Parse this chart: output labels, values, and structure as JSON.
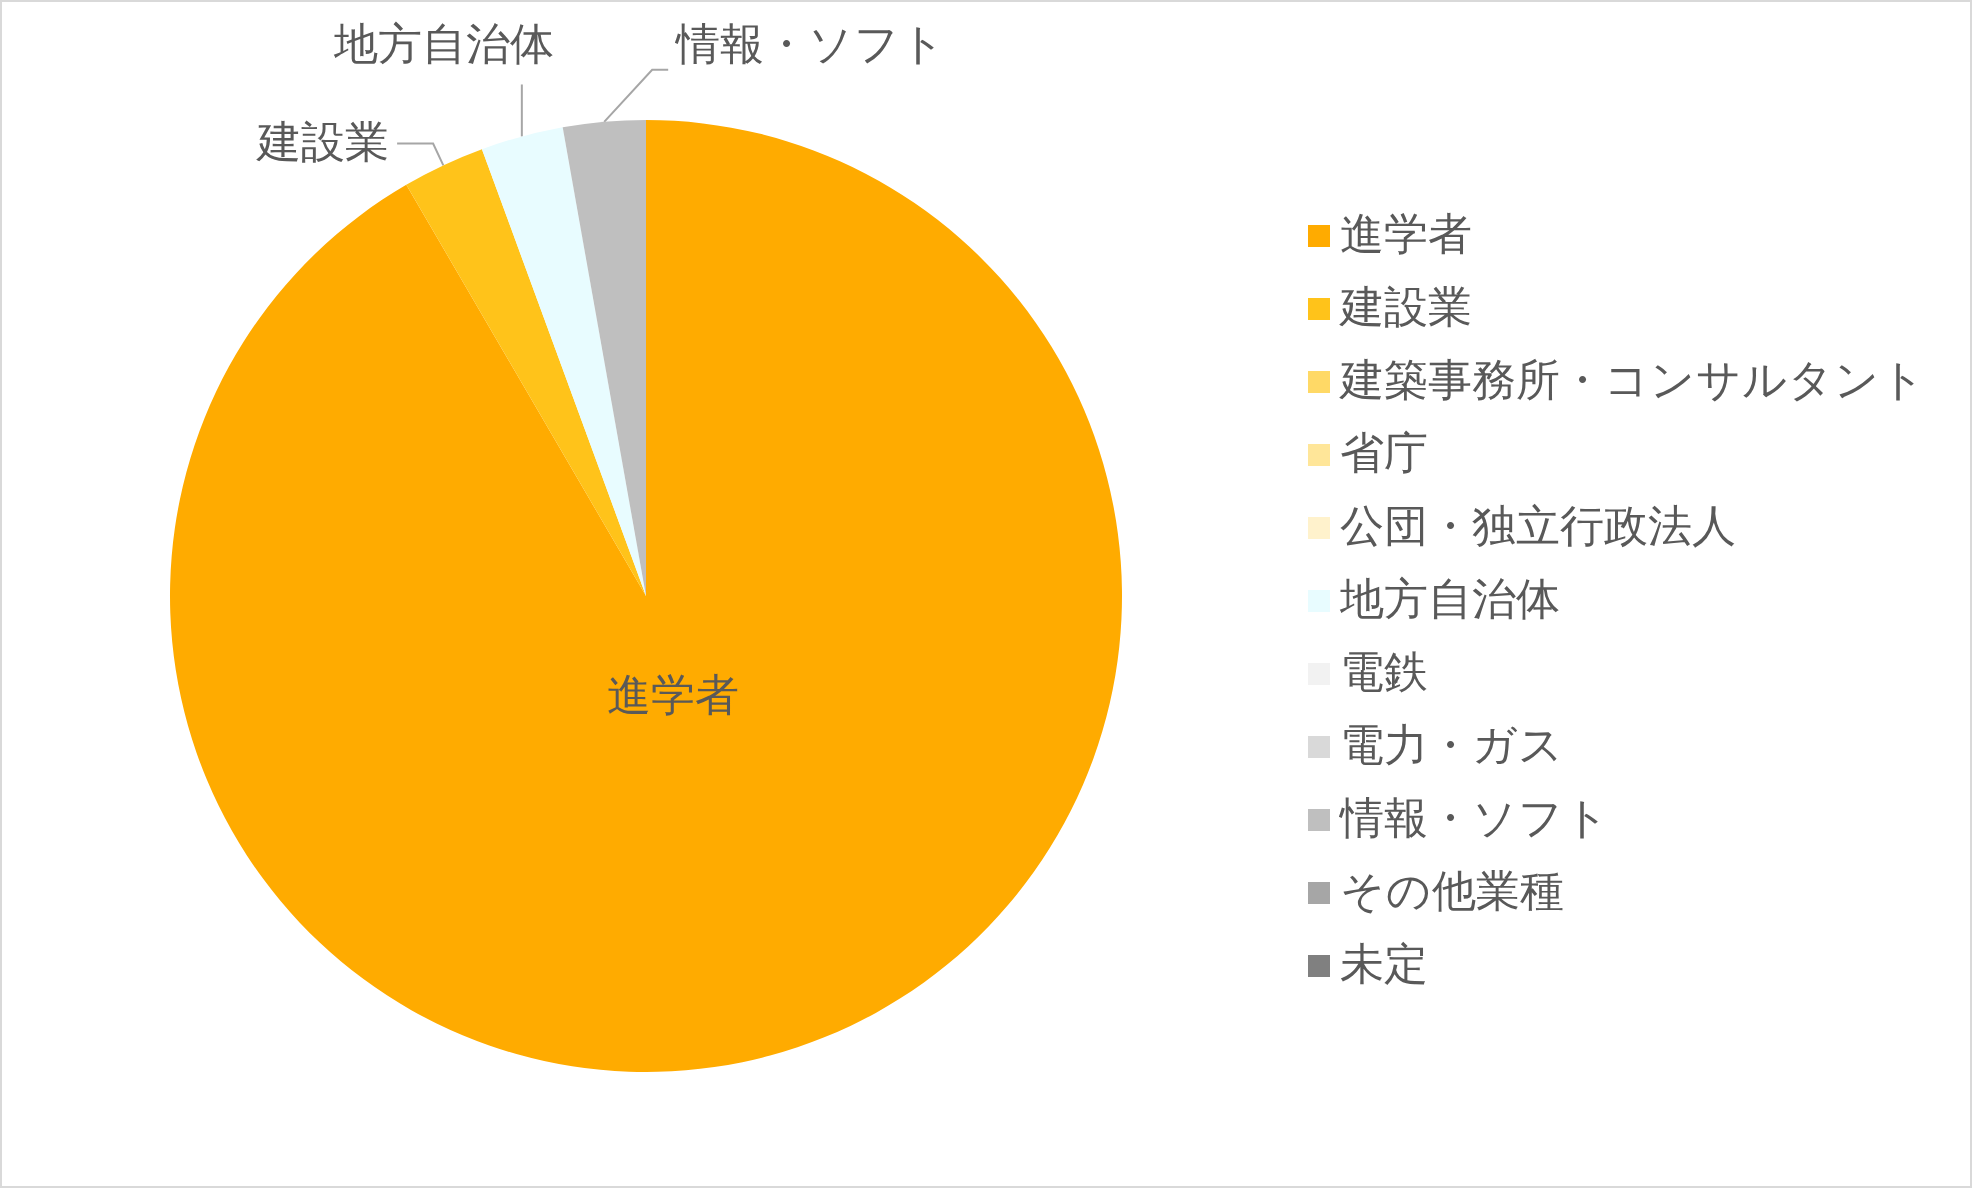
{
  "chart_data": {
    "type": "pie",
    "categories": [
      "進学者",
      "建設業",
      "建築事務所・コンサルタント",
      "省庁",
      "公団・独立行政法人",
      "地方自治体",
      "電鉄",
      "電力・ガス",
      "情報・ソフト",
      "その他業種",
      "未定"
    ],
    "values": [
      91.6,
      2.8,
      0,
      0,
      0,
      2.8,
      0,
      0,
      2.8,
      0,
      0
    ],
    "colors": [
      "#ffab00",
      "#ffc31a",
      "#ffd966",
      "#ffe699",
      "#fff2cc",
      "#e8fcff",
      "#f2f2f2",
      "#d9d9d9",
      "#bfbfbf",
      "#a6a6a6",
      "#808080"
    ],
    "value_labels": [
      "進学者",
      "建設業",
      null,
      null,
      null,
      "地方自治体",
      null,
      null,
      "情報・ソフト",
      null,
      null
    ],
    "legend": "right"
  }
}
